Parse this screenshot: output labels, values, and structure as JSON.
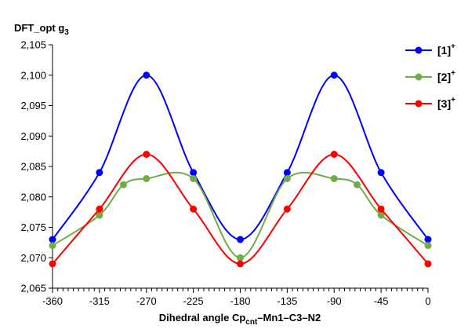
{
  "chart_data": {
    "type": "line",
    "title_main": "DFT_opt g",
    "title_sub": "3",
    "xlabel_main": "Dihedral angle Cp",
    "xlabel_sub": "cnt",
    "xlabel_rest": "–Mn1–C3–N2",
    "xlim": [
      -360,
      0
    ],
    "ylim": [
      2.065,
      2.105
    ],
    "x_ticks": [
      -360,
      -315,
      -270,
      -225,
      -180,
      -135,
      -90,
      -45,
      0
    ],
    "x_tick_labels": [
      "-360",
      "-315",
      "-270",
      "-225",
      "-180",
      "-135",
      "-90",
      "-45",
      "0"
    ],
    "y_ticks": [
      2.065,
      2.07,
      2.075,
      2.08,
      2.085,
      2.09,
      2.095,
      2.1,
      2.105
    ],
    "y_tick_labels": [
      "2,065",
      "2,070",
      "2,075",
      "2,080",
      "2,085",
      "2,090",
      "2,095",
      "2,100",
      "2,105"
    ],
    "grid": false,
    "legend_position": "top-right",
    "series": [
      {
        "name": "[1]",
        "name_sup": "+",
        "color": "#0000ff",
        "x": [
          -360,
          -315,
          -270,
          -225,
          -180,
          -135,
          -90,
          -45,
          0
        ],
        "y": [
          2.073,
          2.084,
          2.1,
          2.084,
          2.073,
          2.084,
          2.1,
          2.084,
          2.073
        ]
      },
      {
        "name": "[2]",
        "name_sup": "+",
        "color": "#70ad47",
        "x": [
          -360,
          -315,
          -292,
          -270,
          -225,
          -180,
          -135,
          -90,
          -68,
          -45,
          0
        ],
        "y": [
          2.072,
          2.077,
          2.082,
          2.083,
          2.083,
          2.07,
          2.083,
          2.083,
          2.082,
          2.077,
          2.072
        ]
      },
      {
        "name": "[3]",
        "name_sup": "+",
        "color": "#ff0000",
        "x": [
          -360,
          -315,
          -270,
          -225,
          -180,
          -135,
          -90,
          -45,
          0
        ],
        "y": [
          2.069,
          2.078,
          2.087,
          2.078,
          2.069,
          2.078,
          2.087,
          2.078,
          2.069
        ]
      }
    ]
  }
}
